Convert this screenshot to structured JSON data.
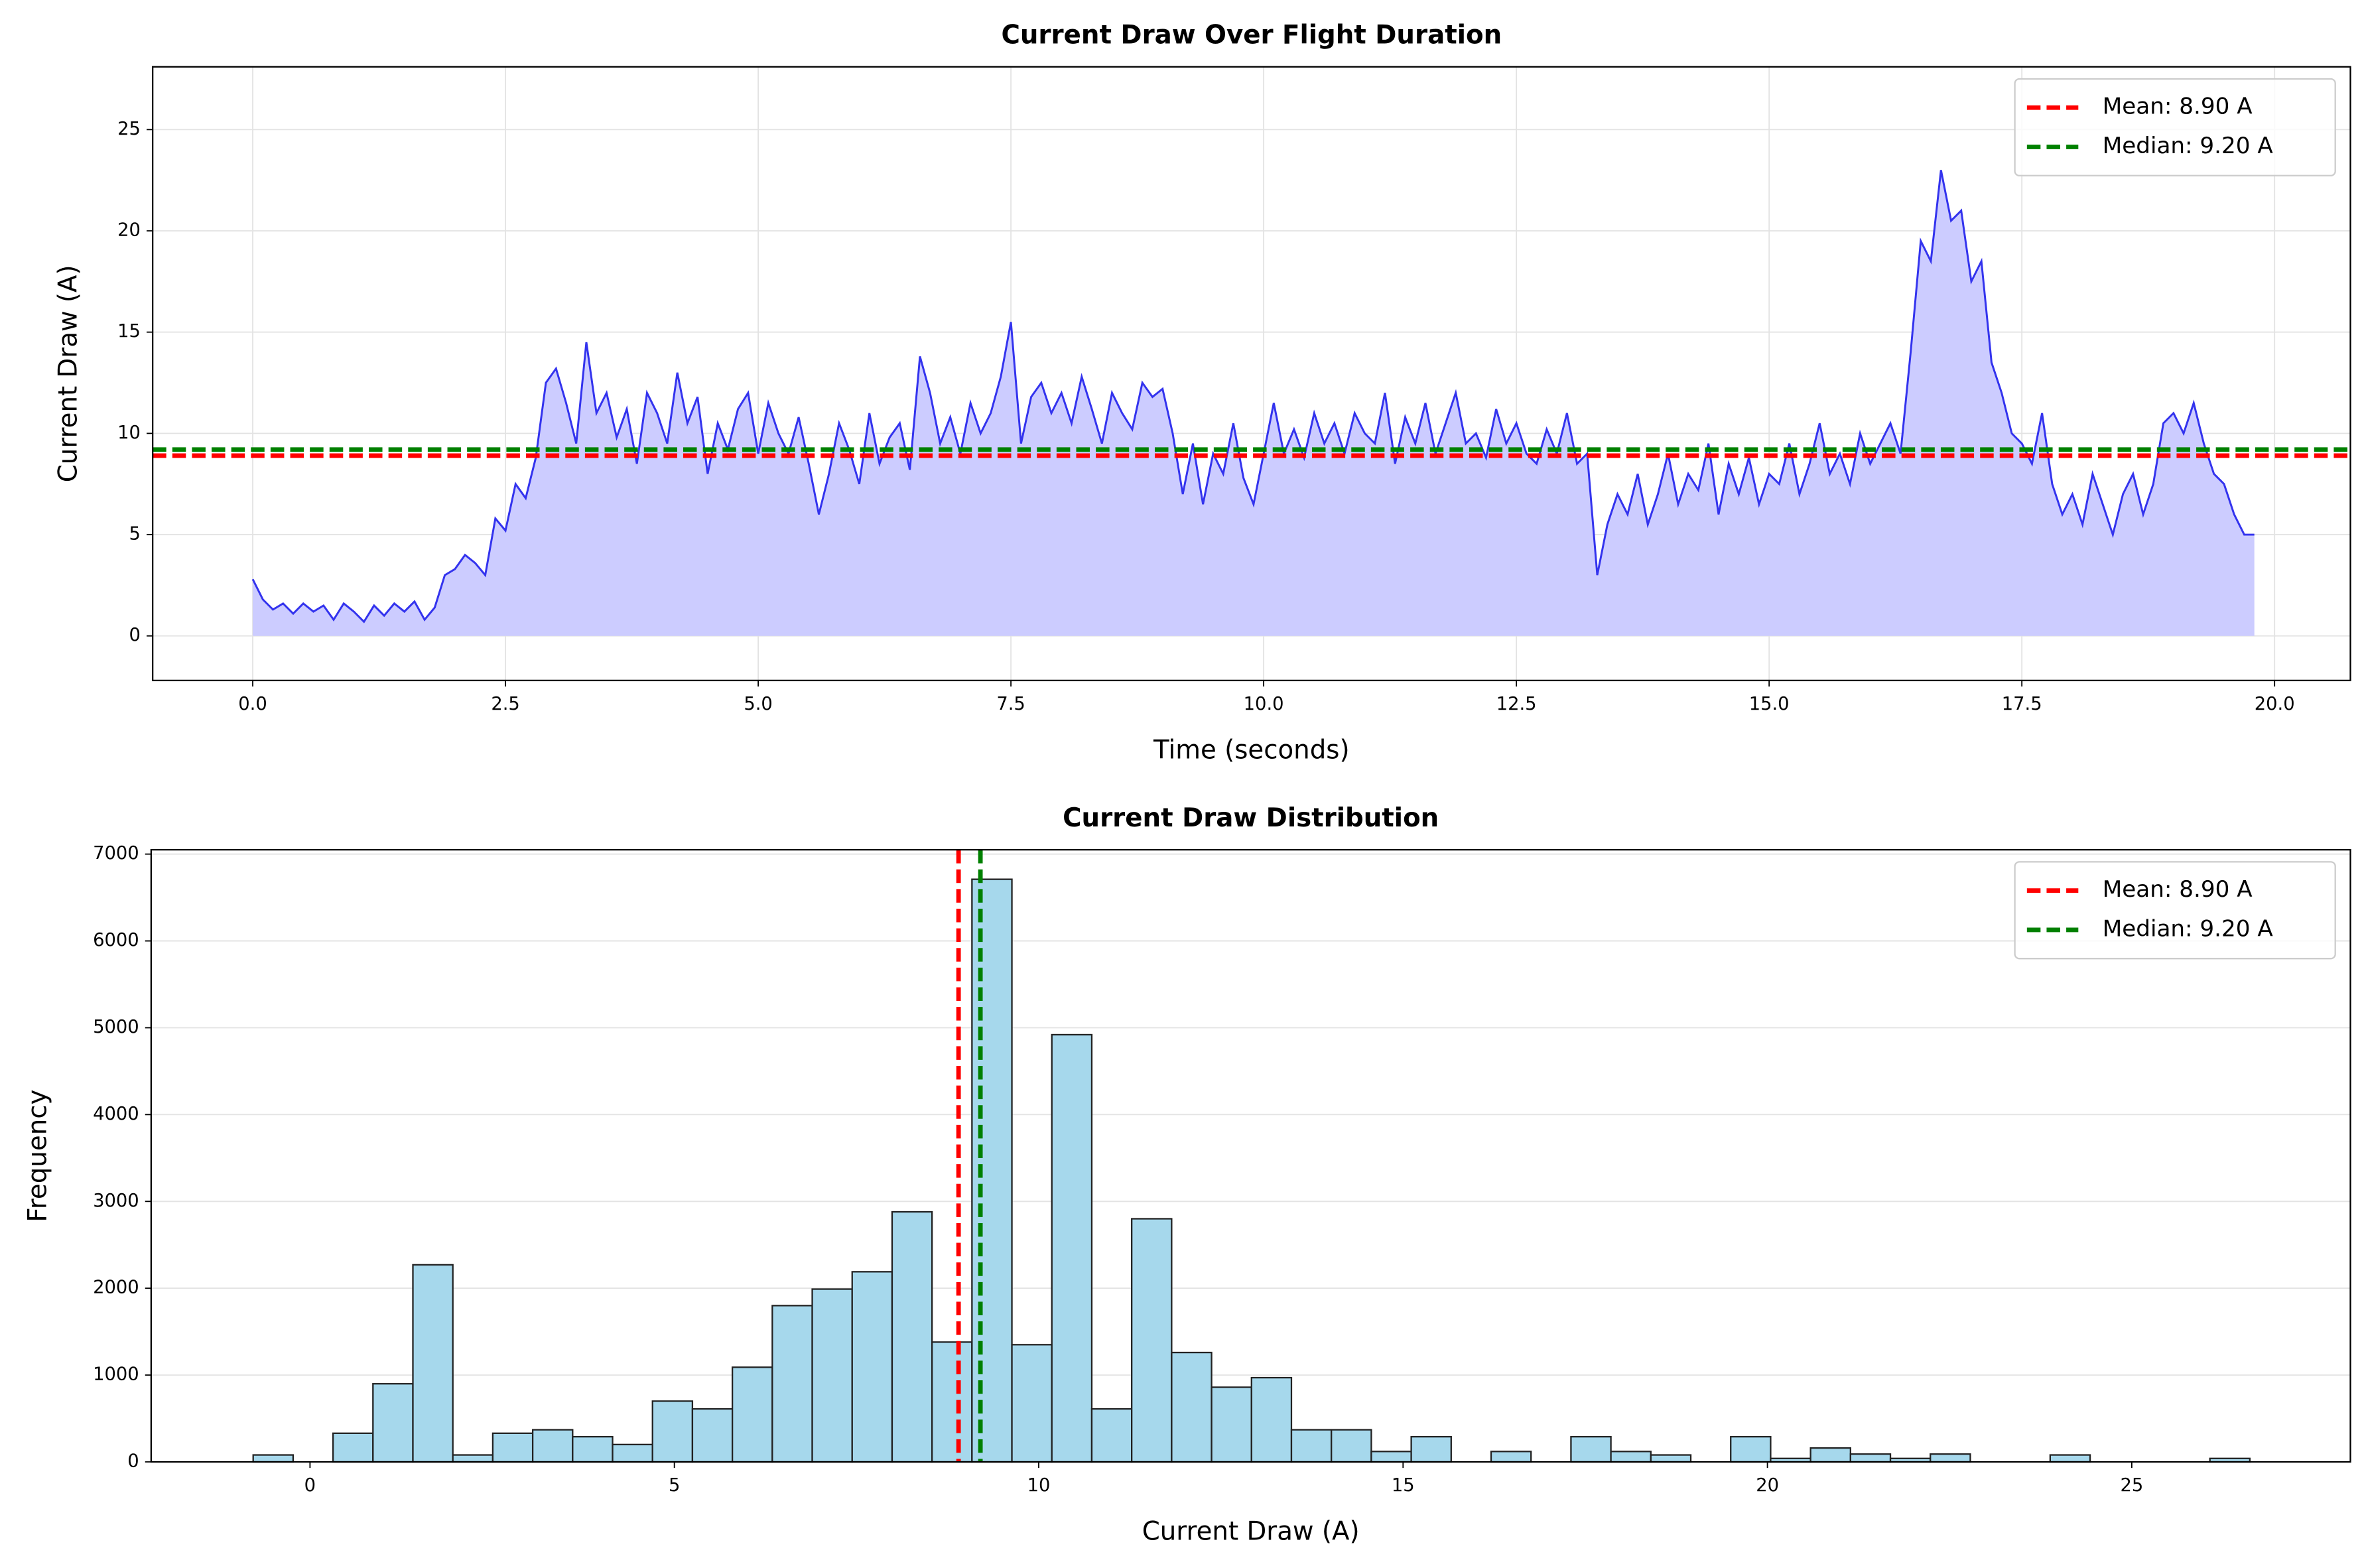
{
  "chart_data": [
    {
      "type": "line",
      "title": "Current Draw Over Flight Duration",
      "xlabel": "Time (seconds)",
      "ylabel": "Current Draw (A)",
      "xlim": [
        -0.99,
        20.75
      ],
      "ylim": [
        -2.2,
        28.1
      ],
      "xticks": [
        {
          "value": 0,
          "label": "0.0"
        },
        2.5,
        {
          "value": 5,
          "label": "5.0"
        },
        7.5,
        {
          "value": 10,
          "label": "10.0"
        },
        12.5,
        {
          "value": 15,
          "label": "15.0"
        },
        17.5,
        {
          "value": 20,
          "label": "20.0"
        }
      ],
      "yticks": [
        0,
        5,
        10,
        15,
        20,
        25
      ],
      "grid": "both",
      "legend": "upper right",
      "color": "#3333ee",
      "fill_color": "#ccccff",
      "x": [
        0,
        0.1,
        0.2,
        0.3,
        0.4,
        0.5,
        0.6,
        0.7,
        0.8,
        0.9,
        1,
        1.1,
        1.2,
        1.3,
        1.4,
        1.5,
        1.6,
        1.7,
        1.8,
        1.9,
        2,
        2.1,
        2.2,
        2.3,
        2.4,
        2.5,
        2.6,
        2.7,
        2.8,
        2.9,
        3,
        3.1,
        3.2,
        3.3,
        3.4,
        3.5,
        3.6,
        3.7,
        3.8,
        3.9,
        4,
        4.1,
        4.2,
        4.3,
        4.4,
        4.5,
        4.6,
        4.7,
        4.8,
        4.9,
        5,
        5.1,
        5.2,
        5.3,
        5.4,
        5.5,
        5.6,
        5.7,
        5.8,
        5.9,
        6,
        6.1,
        6.2,
        6.3,
        6.4,
        6.5,
        6.6,
        6.7,
        6.8,
        6.9,
        7,
        7.1,
        7.2,
        7.3,
        7.4,
        7.5,
        7.6,
        7.7,
        7.8,
        7.9,
        8,
        8.1,
        8.2,
        8.3,
        8.4,
        8.5,
        8.6,
        8.7,
        8.8,
        8.9,
        9,
        9.1,
        9.2,
        9.3,
        9.4,
        9.5,
        9.6,
        9.7,
        9.8,
        9.9,
        10,
        10.1,
        10.2,
        10.3,
        10.4,
        10.5,
        10.6,
        10.7,
        10.8,
        10.9,
        11,
        11.1,
        11.2,
        11.3,
        11.4,
        11.5,
        11.6,
        11.7,
        11.8,
        11.9,
        12,
        12.1,
        12.2,
        12.3,
        12.4,
        12.5,
        12.6,
        12.7,
        12.8,
        12.9,
        13,
        13.1,
        13.2,
        13.3,
        13.4,
        13.5,
        13.6,
        13.7,
        13.8,
        13.9,
        14,
        14.1,
        14.2,
        14.3,
        14.4,
        14.5,
        14.6,
        14.7,
        14.8,
        14.9,
        15,
        15.1,
        15.2,
        15.3,
        15.4,
        15.5,
        15.6,
        15.7,
        15.8,
        15.9,
        16,
        16.1,
        16.2,
        16.3,
        16.4,
        16.5,
        16.6,
        16.7,
        16.8,
        16.9,
        17,
        17.1,
        17.2,
        17.3,
        17.4,
        17.5,
        17.6,
        17.7,
        17.8,
        17.9,
        18,
        18.1,
        18.2,
        18.3,
        18.4,
        18.5,
        18.6,
        18.7,
        18.8,
        18.9,
        19,
        19.1,
        19.2,
        19.3,
        19.4,
        19.5,
        19.6,
        19.7,
        19.8
      ],
      "values": [
        2.8,
        1.8,
        1.3,
        1.6,
        1.1,
        1.6,
        1.2,
        1.5,
        0.8,
        1.6,
        1.2,
        0.7,
        1.5,
        1.0,
        1.6,
        1.2,
        1.7,
        0.8,
        1.4,
        3.0,
        3.3,
        4.0,
        3.6,
        3.0,
        5.8,
        5.2,
        7.5,
        6.8,
        8.8,
        12.5,
        13.2,
        11.5,
        9.5,
        14.5,
        11.0,
        12.0,
        9.8,
        11.2,
        8.5,
        12.0,
        11.0,
        9.5,
        13.0,
        10.5,
        11.8,
        8.0,
        10.5,
        9.2,
        11.2,
        12.0,
        9.0,
        11.5,
        10.0,
        9.0,
        10.8,
        8.5,
        6.0,
        8.0,
        10.5,
        9.2,
        7.5,
        11.0,
        8.5,
        9.8,
        10.5,
        8.2,
        13.8,
        12.0,
        9.5,
        10.8,
        9.0,
        11.5,
        10.0,
        11.0,
        12.8,
        15.5,
        9.5,
        11.8,
        12.5,
        11.0,
        12.0,
        10.5,
        12.8,
        11.2,
        9.5,
        12.0,
        11.0,
        10.2,
        12.5,
        11.8,
        12.2,
        10.0,
        7.0,
        9.5,
        6.5,
        9.0,
        8.0,
        10.5,
        7.8,
        6.5,
        9.0,
        11.5,
        9.0,
        10.2,
        8.8,
        11.0,
        9.5,
        10.5,
        9.0,
        11.0,
        10.0,
        9.5,
        12.0,
        8.5,
        10.8,
        9.5,
        11.5,
        9.0,
        10.5,
        12.0,
        9.5,
        10.0,
        8.8,
        11.2,
        9.5,
        10.5,
        9.0,
        8.5,
        10.2,
        9.0,
        11.0,
        8.5,
        9.0,
        3.0,
        5.5,
        7.0,
        6.0,
        8.0,
        5.5,
        7.0,
        9.0,
        6.5,
        8.0,
        7.2,
        9.5,
        6.0,
        8.5,
        7.0,
        8.8,
        6.5,
        8.0,
        7.5,
        9.5,
        7.0,
        8.5,
        10.5,
        8.0,
        9.0,
        7.5,
        10.0,
        8.5,
        9.5,
        10.5,
        9.0,
        14.0,
        19.5,
        18.5,
        23.0,
        20.5,
        21.0,
        17.5,
        18.5,
        13.5,
        12.0,
        10.0,
        9.5,
        8.5,
        11.0,
        7.5,
        6.0,
        7.0,
        5.5,
        8.0,
        6.5,
        5.0,
        7.0,
        8.0,
        6.0,
        7.5,
        10.5,
        11.0,
        10.0,
        11.5,
        9.5,
        8.0,
        7.5,
        6.0,
        5.0,
        5.0
      ],
      "reference_lines": [
        {
          "name": "Mean: 8.90 A",
          "value": 8.9,
          "color": "#ff0000"
        },
        {
          "name": "Median: 9.20 A",
          "value": 9.2,
          "color": "#008000"
        }
      ]
    },
    {
      "type": "histogram",
      "title": "Current Draw Distribution",
      "xlabel": "Current Draw (A)",
      "ylabel": "Frequency",
      "xlim": [
        -2.18,
        28.0
      ],
      "ylim": [
        0,
        7050
      ],
      "xticks": [
        0,
        5,
        10,
        15,
        20,
        25
      ],
      "yticks": [
        0,
        1000,
        2000,
        3000,
        4000,
        5000,
        6000,
        7000
      ],
      "grid": "y",
      "legend": "upper right",
      "color": "#a6d8ec",
      "edgecolor": "#222222",
      "bins": [
        -0.78,
        -0.232,
        0.316,
        0.864,
        1.412,
        1.96,
        2.508,
        3.056,
        3.604,
        4.152,
        4.7,
        5.248,
        5.796,
        6.344,
        6.892,
        7.44,
        7.988,
        8.536,
        9.084,
        9.632,
        10.18,
        10.728,
        11.276,
        11.824,
        12.372,
        12.92,
        13.468,
        14.016,
        14.564,
        15.112,
        15.66,
        16.208,
        16.756,
        17.304,
        17.852,
        18.4,
        18.948,
        19.496,
        20.044,
        20.592,
        21.14,
        21.688,
        22.236,
        22.784,
        23.332,
        23.88,
        24.428,
        24.976,
        25.524,
        26.072,
        26.62
      ],
      "values": [
        80,
        0,
        330,
        900,
        2270,
        80,
        330,
        370,
        290,
        200,
        700,
        610,
        1090,
        1800,
        1990,
        2190,
        2880,
        1380,
        6710,
        1350,
        4920,
        610,
        2800,
        1260,
        860,
        970,
        370,
        370,
        120,
        290,
        0,
        120,
        0,
        290,
        120,
        80,
        0,
        290,
        40,
        160,
        90,
        40,
        90,
        0,
        0,
        80,
        0,
        0,
        0,
        40
      ],
      "reference_lines": [
        {
          "name": "Mean: 8.90 A",
          "value": 8.9,
          "color": "#ff0000"
        },
        {
          "name": "Median: 9.20 A",
          "value": 9.2,
          "color": "#008000"
        }
      ]
    }
  ]
}
